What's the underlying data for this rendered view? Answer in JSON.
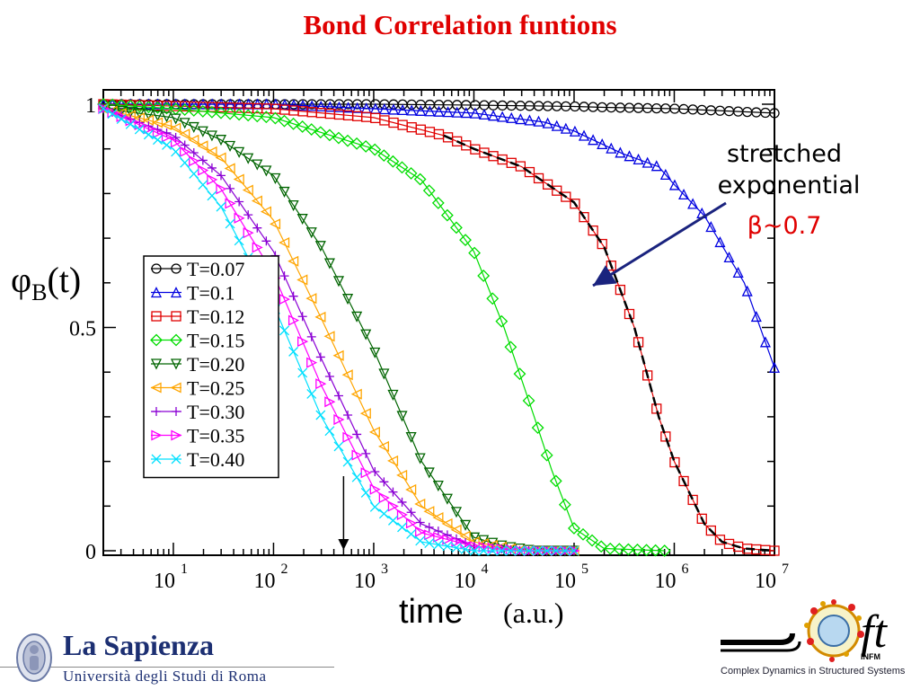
{
  "slide": {
    "title": "Bond Correlation funtions",
    "annotation_line1": "stretched",
    "annotation_line2": "exponential",
    "annotation_line3": "β~0.7",
    "xlabel": "time",
    "xunit": "(a.u.)",
    "ylabel_main": "φ",
    "ylabel_sub": "B",
    "ylabel_tail": "(t)"
  },
  "logos": {
    "left_name": "La Sapienza",
    "left_sub": "Università degli Studi di Roma",
    "right_sub": "Complex Dynamics in Structured Systems",
    "right_infm": "INFM"
  },
  "chart_data": {
    "type": "line",
    "xlabel": "time",
    "ylabel": "φB(t)",
    "xscale": "log",
    "xlim": [
      2,
      10000000
    ],
    "ylim": [
      0,
      1
    ],
    "xticks": [
      "10^1",
      "10^2",
      "10^3",
      "10^4",
      "10^5",
      "10^6",
      "10^7"
    ],
    "yticks": [
      "0",
      "0.5",
      "1"
    ],
    "legend_position": "left-middle",
    "fit_curve": {
      "name": "stretched exponential β~0.7",
      "color": "#000000",
      "style": "dashed"
    },
    "arrow_marker_x": 500,
    "series": [
      {
        "name": "T=0.07",
        "color": "#000000",
        "marker": "circle",
        "x": [
          2,
          10,
          100,
          1000,
          10000,
          100000,
          200000,
          1000000,
          10000000
        ],
        "y": [
          1.0,
          1.0,
          1.0,
          1.0,
          0.998,
          0.995,
          0.993,
          0.99,
          0.98
        ]
      },
      {
        "name": "T=0.1",
        "color": "#0000e0",
        "marker": "triangle-up",
        "x": [
          2,
          100,
          1000,
          10000,
          50000,
          100000,
          300000,
          700000,
          1000000,
          2000000,
          5000000,
          10000000
        ],
        "y": [
          1.0,
          1.0,
          0.99,
          0.98,
          0.96,
          0.94,
          0.89,
          0.86,
          0.82,
          0.75,
          0.6,
          0.41
        ]
      },
      {
        "name": "T=0.12",
        "color": "#e00000",
        "marker": "square",
        "x": [
          2,
          100,
          1000,
          5000,
          10000,
          30000,
          100000,
          200000,
          400000,
          700000,
          1000000,
          2000000,
          3000000,
          5000000,
          10000000
        ],
        "y": [
          1.0,
          0.99,
          0.97,
          0.93,
          0.9,
          0.86,
          0.78,
          0.68,
          0.5,
          0.3,
          0.2,
          0.06,
          0.02,
          0.005,
          0.0
        ]
      },
      {
        "name": "T=0.15",
        "color": "#00dd00",
        "marker": "diamond",
        "x": [
          2,
          10,
          100,
          1000,
          3000,
          10000,
          20000,
          40000,
          60000,
          100000,
          200000,
          800000
        ],
        "y": [
          1.0,
          0.99,
          0.97,
          0.9,
          0.83,
          0.67,
          0.5,
          0.3,
          0.18,
          0.05,
          0.005,
          0.0
        ]
      },
      {
        "name": "T=0.20",
        "color": "#006400",
        "marker": "triangle-down",
        "x": [
          2,
          10,
          30,
          100,
          300,
          1000,
          3000,
          10000,
          20000,
          40000,
          100000
        ],
        "y": [
          0.99,
          0.97,
          0.92,
          0.84,
          0.68,
          0.45,
          0.2,
          0.03,
          0.01,
          0.0,
          0.0
        ]
      },
      {
        "name": "T=0.25",
        "color": "#ffa500",
        "marker": "triangle-left",
        "x": [
          2,
          10,
          30,
          100,
          300,
          1000,
          3000,
          10000,
          30000,
          100000
        ],
        "y": [
          0.99,
          0.95,
          0.88,
          0.74,
          0.52,
          0.27,
          0.1,
          0.02,
          0.0,
          0.0
        ]
      },
      {
        "name": "T=0.30",
        "color": "#8a00d4",
        "marker": "plus",
        "x": [
          2,
          10,
          30,
          100,
          300,
          1000,
          3000,
          10000,
          30000,
          100000
        ],
        "y": [
          0.99,
          0.93,
          0.84,
          0.67,
          0.43,
          0.18,
          0.06,
          0.01,
          0.0,
          0.0
        ]
      },
      {
        "name": "T=0.35",
        "color": "#ff00ff",
        "marker": "triangle-right",
        "x": [
          2,
          10,
          30,
          100,
          300,
          1000,
          3000,
          10000,
          30000,
          100000
        ],
        "y": [
          0.99,
          0.92,
          0.81,
          0.62,
          0.37,
          0.14,
          0.04,
          0.01,
          0.0,
          0.0
        ]
      },
      {
        "name": "T=0.40",
        "color": "#00e0ff",
        "marker": "x",
        "x": [
          2,
          10,
          30,
          100,
          300,
          1000,
          3000,
          10000,
          30000,
          100000
        ],
        "y": [
          0.99,
          0.9,
          0.77,
          0.55,
          0.3,
          0.1,
          0.02,
          0.0,
          0.0,
          0.0
        ]
      }
    ]
  }
}
